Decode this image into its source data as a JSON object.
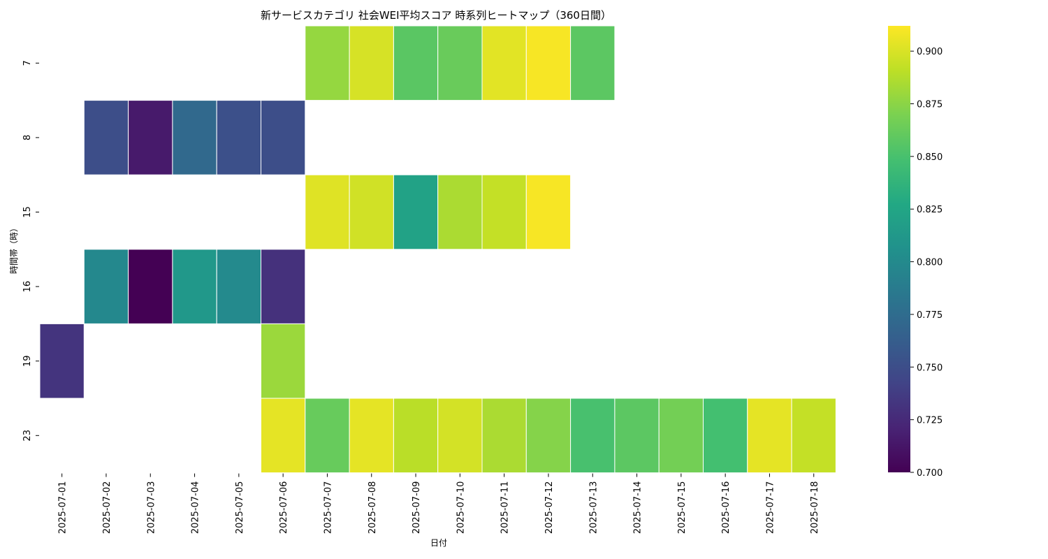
{
  "chart_data": {
    "type": "heatmap",
    "title": "新サービスカテゴリ 社会WEI平均スコア 時系列ヒートマップ（360日間）",
    "xlabel": "日付",
    "ylabel": "時間帯（時）",
    "x": [
      "2025-07-01",
      "2025-07-02",
      "2025-07-03",
      "2025-07-04",
      "2025-07-05",
      "2025-07-06",
      "2025-07-07",
      "2025-07-08",
      "2025-07-09",
      "2025-07-10",
      "2025-07-11",
      "2025-07-12",
      "2025-07-13",
      "2025-07-14",
      "2025-07-15",
      "2025-07-16",
      "2025-07-17",
      "2025-07-18"
    ],
    "y": [
      "7",
      "8",
      "15",
      "16",
      "19",
      "23"
    ],
    "values": [
      [
        null,
        null,
        null,
        null,
        null,
        null,
        0.878,
        0.899,
        0.857,
        0.863,
        0.903,
        0.91,
        0.858,
        null,
        null,
        null,
        null,
        null
      ],
      [
        null,
        0.75,
        0.715,
        0.772,
        0.752,
        0.75,
        null,
        null,
        null,
        null,
        null,
        null,
        null,
        null,
        null,
        null,
        null,
        null
      ],
      [
        null,
        null,
        null,
        null,
        null,
        null,
        0.902,
        0.897,
        0.822,
        0.885,
        0.893,
        0.91,
        null,
        null,
        null,
        null,
        null,
        null
      ],
      [
        null,
        0.798,
        0.7,
        0.812,
        0.8,
        0.73,
        null,
        null,
        null,
        null,
        null,
        null,
        null,
        null,
        null,
        null,
        null,
        null
      ],
      [
        0.732,
        null,
        null,
        null,
        null,
        0.88,
        null,
        null,
        null,
        null,
        null,
        null,
        null,
        null,
        null,
        null,
        null,
        null
      ],
      [
        null,
        null,
        null,
        null,
        null,
        0.904,
        0.862,
        0.904,
        0.89,
        0.898,
        0.885,
        0.873,
        0.85,
        0.858,
        0.867,
        0.848,
        0.904,
        0.893
      ]
    ],
    "colorbar": {
      "colormap": "viridis",
      "range": [
        0.7,
        0.912
      ],
      "ticks": [
        "0.700",
        "0.725",
        "0.750",
        "0.775",
        "0.800",
        "0.825",
        "0.850",
        "0.875",
        "0.900"
      ]
    },
    "grid": false,
    "legend": "colorbar-right"
  }
}
